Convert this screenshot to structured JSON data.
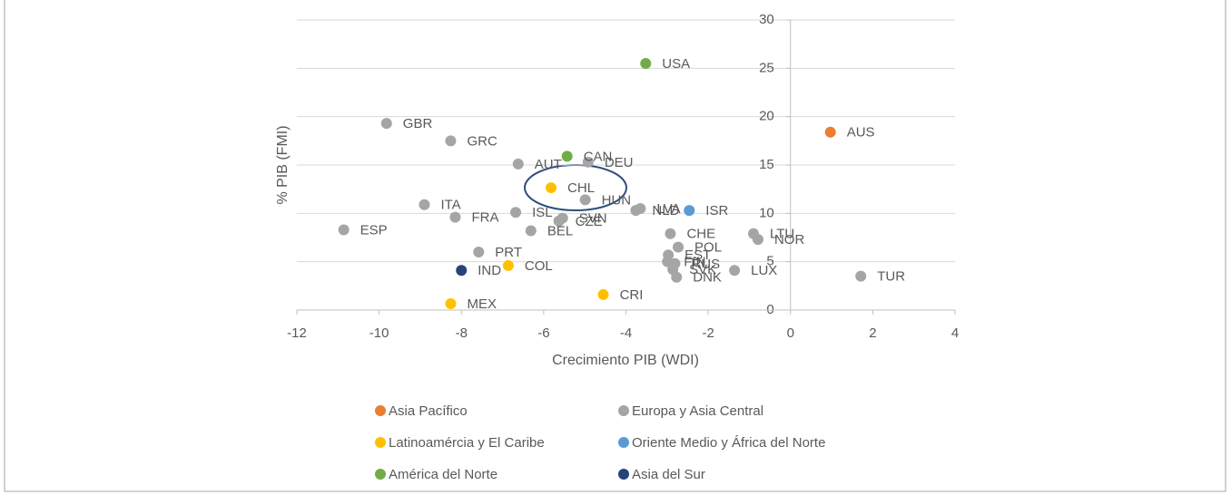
{
  "chart_data": {
    "type": "scatter",
    "x_label": "Crecimiento PIB (WDI)",
    "y_label": "% PIB (FMI)",
    "xlim": [
      -12,
      4
    ],
    "xticks": [
      -12,
      -10,
      -8,
      -6,
      -4,
      -2,
      0,
      2,
      4
    ],
    "ylim": [
      0,
      30
    ],
    "yticks": [
      0,
      5,
      10,
      15,
      20,
      25,
      30
    ],
    "grid": true,
    "series": [
      {
        "name": "Asia Pacífico",
        "color": "#ed7d31",
        "labels": [
          "AUS"
        ],
        "x": [
          0.97
        ],
        "values": [
          18.4
        ]
      },
      {
        "name": "Europa y Asia Central",
        "color": "#a5a5a5",
        "labels": [
          "GBR",
          "GRC",
          "DEU",
          "AUT",
          "HUN",
          "ITA",
          "FRA",
          "ISL",
          "SVN",
          "CZE",
          "NLD",
          "LVA",
          "ESP",
          "BEL",
          "CHE",
          "LTU",
          "NOR",
          "POL",
          "PRT",
          "EST",
          "FIN",
          "RUS",
          "SVK",
          "DNK",
          "LUX",
          "TUR"
        ],
        "x": [
          -9.82,
          -8.26,
          -4.92,
          -6.62,
          -4.99,
          -8.9,
          -8.15,
          -6.68,
          -5.54,
          -5.63,
          -3.76,
          -3.65,
          -10.86,
          -6.31,
          -2.92,
          -0.9,
          -0.79,
          -2.73,
          -7.58,
          -2.97,
          -2.99,
          -2.81,
          -2.86,
          -2.77,
          -1.36,
          1.71
        ],
        "values": [
          19.3,
          17.5,
          15.3,
          15.1,
          11.4,
          10.9,
          9.6,
          10.1,
          9.5,
          9.2,
          10.3,
          10.5,
          8.3,
          8.2,
          7.9,
          7.9,
          7.3,
          6.5,
          6.0,
          5.7,
          5.0,
          4.8,
          4.2,
          3.4,
          4.1,
          3.5
        ]
      },
      {
        "name": "Latinoamércia y El Caribe",
        "color": "#ffc000",
        "labels": [
          "CHL",
          "COL",
          "CRI",
          "MEX"
        ],
        "x": [
          -5.82,
          -6.86,
          -4.55,
          -8.26
        ],
        "values": [
          12.65,
          4.6,
          1.6,
          0.66
        ]
      },
      {
        "name": "Oriente Medio y África del Norte",
        "color": "#5b9bd5",
        "labels": [
          "ISR"
        ],
        "x": [
          -2.46
        ],
        "values": [
          10.3
        ]
      },
      {
        "name": "América del Norte",
        "color": "#70ad47",
        "labels": [
          "USA",
          "CAN"
        ],
        "x": [
          -3.52,
          -5.43
        ],
        "values": [
          25.5,
          15.9
        ]
      },
      {
        "name": "Asia del Sur",
        "color": "#264478",
        "labels": [
          "IND"
        ],
        "x": [
          -8.0
        ],
        "values": [
          4.1
        ]
      }
    ]
  }
}
